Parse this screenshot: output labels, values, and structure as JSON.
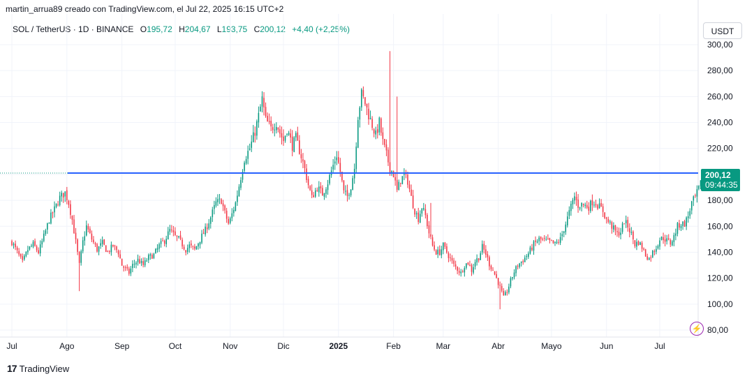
{
  "header": {
    "attribution": "martin_arrua89 creado con TradingView.com, el Jul 22, 2025 16:15 UTC+2"
  },
  "legend": {
    "symbol": "SOL / TetherUS · 1D · BINANCE",
    "open_label": "O",
    "open": "195,72",
    "high_label": "H",
    "high": "204,67",
    "low_label": "L",
    "low": "193,75",
    "close_label": "C",
    "close": "200,12",
    "change": "+4,40 (+2,25%)"
  },
  "currency_button": "USDT",
  "price_tag": {
    "price": "200,12",
    "countdown": "09:44:35"
  },
  "footer": {
    "brand_logo": "17",
    "brand_name": "TradingView"
  },
  "colors": {
    "up": "#089981",
    "down": "#f23645",
    "hline": "#2962ff",
    "grid": "#f0f3fa"
  },
  "chart_data": {
    "type": "candlestick",
    "y_ticks": [
      "300,00",
      "280,00",
      "260,00",
      "240,00",
      "220,00",
      "200,00",
      "180,00",
      "160,00",
      "140,00",
      "120,00",
      "100,00",
      "80,00"
    ],
    "y_tick_values": [
      300,
      280,
      260,
      240,
      220,
      200,
      180,
      160,
      140,
      120,
      100,
      80
    ],
    "ylim": [
      73,
      306
    ],
    "x_ticks": [
      "Jul",
      "Ago",
      "Sep",
      "Oct",
      "Nov",
      "Dic",
      "2025",
      "Feb",
      "Mar",
      "Abr",
      "Mayo",
      "Jun",
      "Jul"
    ],
    "x_tick_days": [
      0,
      31,
      62,
      92,
      123,
      153,
      184,
      215,
      243,
      274,
      304,
      335,
      365
    ],
    "horizontal_line": 201,
    "last_close": 200.12,
    "closes": [
      [
        0,
        148
      ],
      [
        3,
        140
      ],
      [
        6,
        132
      ],
      [
        9,
        142
      ],
      [
        12,
        146
      ],
      [
        15,
        140
      ],
      [
        18,
        152
      ],
      [
        21,
        165
      ],
      [
        24,
        173
      ],
      [
        27,
        182
      ],
      [
        30,
        186
      ],
      [
        32,
        178
      ],
      [
        34,
        165
      ],
      [
        36,
        148
      ],
      [
        38,
        130
      ],
      [
        40,
        148
      ],
      [
        42,
        160
      ],
      [
        45,
        150
      ],
      [
        48,
        142
      ],
      [
        51,
        147
      ],
      [
        54,
        140
      ],
      [
        57,
        145
      ],
      [
        60,
        140
      ],
      [
        62,
        130
      ],
      [
        64,
        127
      ],
      [
        66,
        124
      ],
      [
        68,
        130
      ],
      [
        71,
        134
      ],
      [
        74,
        130
      ],
      [
        77,
        136
      ],
      [
        80,
        138
      ],
      [
        83,
        145
      ],
      [
        86,
        149
      ],
      [
        89,
        157
      ],
      [
        92,
        152
      ],
      [
        94,
        150
      ],
      [
        96,
        146
      ],
      [
        98,
        142
      ],
      [
        100,
        145
      ],
      [
        103,
        142
      ],
      [
        106,
        150
      ],
      [
        109,
        157
      ],
      [
        112,
        167
      ],
      [
        115,
        178
      ],
      [
        118,
        180
      ],
      [
        120,
        170
      ],
      [
        122,
        162
      ],
      [
        123,
        165
      ],
      [
        126,
        178
      ],
      [
        129,
        198
      ],
      [
        131,
        212
      ],
      [
        134,
        220
      ],
      [
        137,
        233
      ],
      [
        139,
        245
      ],
      [
        141,
        258
      ],
      [
        143,
        242
      ],
      [
        146,
        235
      ],
      [
        149,
        240
      ],
      [
        151,
        232
      ],
      [
        153,
        226
      ],
      [
        155,
        235
      ],
      [
        158,
        222
      ],
      [
        160,
        228
      ],
      [
        163,
        214
      ],
      [
        165,
        204
      ],
      [
        167,
        192
      ],
      [
        169,
        182
      ],
      [
        172,
        190
      ],
      [
        175,
        185
      ],
      [
        178,
        194
      ],
      [
        181,
        207
      ],
      [
        183,
        215
      ],
      [
        185,
        202
      ],
      [
        187,
        186
      ],
      [
        189,
        183
      ],
      [
        191,
        191
      ],
      [
        193,
        205
      ],
      [
        195,
        245
      ],
      [
        197,
        262
      ],
      [
        199,
        255
      ],
      [
        201,
        246
      ],
      [
        203,
        238
      ],
      [
        205,
        230
      ],
      [
        207,
        240
      ],
      [
        209,
        225
      ],
      [
        211,
        215
      ],
      [
        213,
        205
      ],
      [
        215,
        200
      ],
      [
        217,
        187
      ],
      [
        219,
        196
      ],
      [
        221,
        199
      ],
      [
        223,
        195
      ],
      [
        225,
        182
      ],
      [
        227,
        172
      ],
      [
        229,
        166
      ],
      [
        231,
        175
      ],
      [
        233,
        168
      ],
      [
        235,
        155
      ],
      [
        237,
        145
      ],
      [
        239,
        140
      ],
      [
        241,
        140
      ],
      [
        243,
        145
      ],
      [
        245,
        140
      ],
      [
        247,
        135
      ],
      [
        249,
        130
      ],
      [
        251,
        127
      ],
      [
        253,
        124
      ],
      [
        255,
        130
      ],
      [
        257,
        132
      ],
      [
        259,
        126
      ],
      [
        261,
        133
      ],
      [
        263,
        136
      ],
      [
        265,
        144
      ],
      [
        267,
        139
      ],
      [
        269,
        131
      ],
      [
        271,
        126
      ],
      [
        273,
        120
      ],
      [
        275,
        113
      ],
      [
        277,
        105
      ],
      [
        279,
        110
      ],
      [
        281,
        118
      ],
      [
        283,
        125
      ],
      [
        285,
        130
      ],
      [
        288,
        134
      ],
      [
        291,
        139
      ],
      [
        294,
        146
      ],
      [
        297,
        150
      ],
      [
        300,
        149
      ],
      [
        303,
        148
      ],
      [
        306,
        146
      ],
      [
        309,
        150
      ],
      [
        312,
        162
      ],
      [
        315,
        175
      ],
      [
        317,
        183
      ],
      [
        319,
        176
      ],
      [
        321,
        177
      ],
      [
        323,
        176
      ],
      [
        325,
        175
      ],
      [
        327,
        179
      ],
      [
        329,
        178
      ],
      [
        331,
        175
      ],
      [
        333,
        172
      ],
      [
        335,
        165
      ],
      [
        337,
        162
      ],
      [
        339,
        158
      ],
      [
        341,
        154
      ],
      [
        343,
        156
      ],
      [
        345,
        164
      ],
      [
        347,
        160
      ],
      [
        349,
        154
      ],
      [
        351,
        146
      ],
      [
        353,
        148
      ],
      [
        355,
        144
      ],
      [
        357,
        138
      ],
      [
        359,
        135
      ],
      [
        361,
        140
      ],
      [
        363,
        144
      ],
      [
        365,
        150
      ],
      [
        367,
        151
      ],
      [
        369,
        149
      ],
      [
        371,
        147
      ],
      [
        373,
        152
      ],
      [
        375,
        160
      ],
      [
        377,
        162
      ],
      [
        379,
        162
      ],
      [
        381,
        168
      ],
      [
        383,
        178
      ],
      [
        385,
        182
      ],
      [
        387,
        189
      ],
      [
        389,
        196
      ],
      [
        390,
        200.12
      ]
    ],
    "spikes": [
      [
        38,
        110
      ],
      [
        213,
        295
      ],
      [
        217,
        260
      ],
      [
        236,
        178
      ],
      [
        275,
        96
      ]
    ]
  }
}
